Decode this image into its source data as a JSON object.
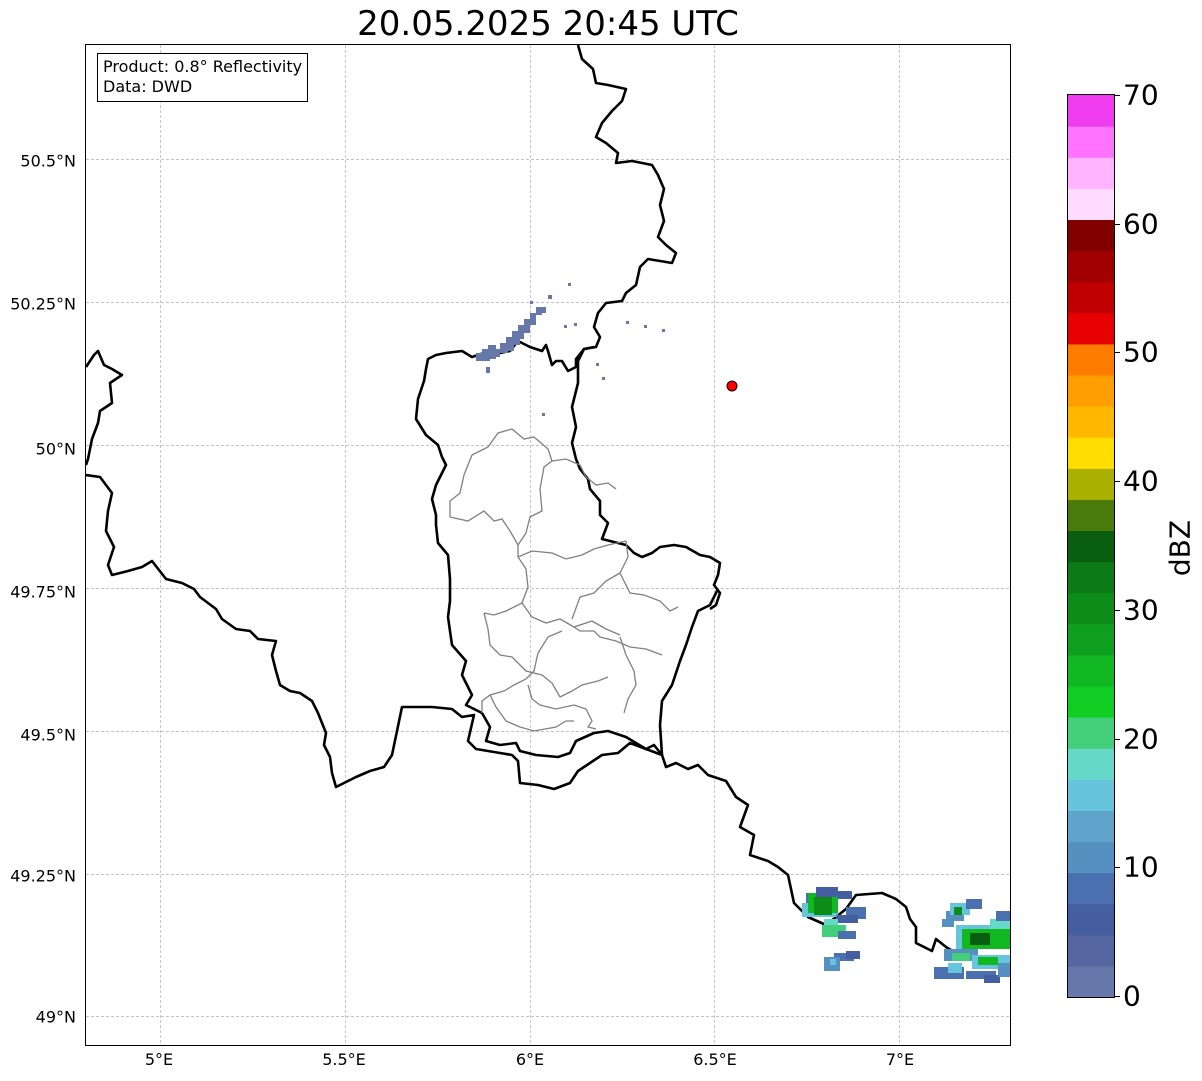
{
  "title": "20.05.2025 20:45 UTC",
  "info_box": {
    "line1": "Product: 0.8° Reflectivity",
    "line2": "Data: DWD"
  },
  "map": {
    "lon_range": [
      4.8,
      7.3
    ],
    "lat_range": [
      48.95,
      50.7
    ],
    "lat_ticks": [
      {
        "value": 50.5,
        "label": "50.5°N"
      },
      {
        "value": 50.25,
        "label": "50.25°N"
      },
      {
        "value": 50.0,
        "label": "50°N"
      },
      {
        "value": 49.75,
        "label": "49.75°N"
      },
      {
        "value": 49.5,
        "label": "49.5°N"
      },
      {
        "value": 49.25,
        "label": "49.25°N"
      },
      {
        "value": 49.0,
        "label": "49°N"
      }
    ],
    "lon_ticks": [
      {
        "value": 5.0,
        "label": "5°E"
      },
      {
        "value": 5.5,
        "label": "5.5°E"
      },
      {
        "value": 6.0,
        "label": "6°E"
      },
      {
        "value": 6.5,
        "label": "6.5°E"
      },
      {
        "value": 7.0,
        "label": "7°E"
      }
    ],
    "gridlines": true,
    "radar_site": {
      "lon": 6.548,
      "lat": 50.11,
      "color": "#ff0000"
    },
    "border_color": "#000000",
    "district_color": "#808080"
  },
  "colorbar": {
    "label": "dBZ",
    "min": 0,
    "max": 70,
    "tick_values": [
      0,
      10,
      20,
      30,
      40,
      50,
      60,
      70
    ],
    "tick_labels": [
      "0",
      "10",
      "20",
      "30",
      "40",
      "50",
      "60",
      "70"
    ],
    "colors": [
      "#6677aa",
      "#5566a0",
      "#445ea0",
      "#4a70b0",
      "#5590c0",
      "#60a4cc",
      "#66c4dc",
      "#66d8c8",
      "#44d07a",
      "#11cc22",
      "#11b822",
      "#10a020",
      "#0e8c1a",
      "#0c7a16",
      "#0a5e10",
      "#4a7a0a",
      "#aab000",
      "#ffdd00",
      "#ffb800",
      "#ff9e00",
      "#ff7c00",
      "#e60000",
      "#c00000",
      "#a00000",
      "#800000",
      "#ffdcff",
      "#ffb4ff",
      "#ff73ff",
      "#ee3cee"
    ]
  }
}
